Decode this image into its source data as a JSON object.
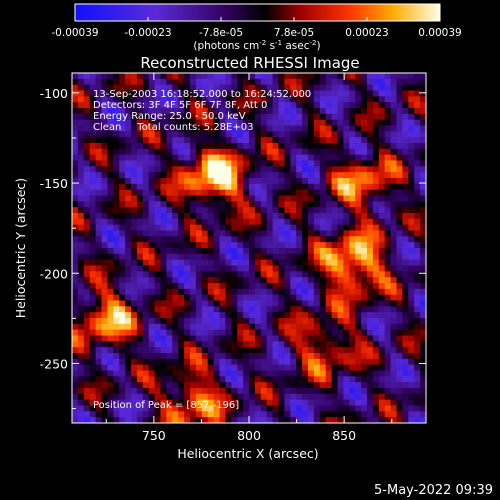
{
  "chart_data": {
    "type": "heatmap",
    "title": "Reconstructed RHESSI Image",
    "xlabel": "Heliocentric X (arcsec)",
    "ylabel": "Heliocentric Y (arcsec)",
    "xlim": [
      707,
      893
    ],
    "ylim": [
      -283,
      -89
    ],
    "x_ticks": [
      750,
      800,
      850
    ],
    "y_ticks": [
      -100,
      -150,
      -200,
      -250
    ],
    "colorbar": {
      "ticks": [
        "-0.00039",
        "-0.00023",
        "-7.8e-05",
        "7.8e-05",
        "0.00023",
        "0.00039"
      ],
      "range": [
        -0.00039,
        0.00039
      ],
      "units_line1": "(photons cm",
      "units_sup1": "-2",
      "units_line2": " s",
      "units_sup2": "-1",
      "units_line3": " asec",
      "units_sup3": "-2",
      "units_line4": ")"
    },
    "annotations": [
      "13-Sep-2003 16:18:52.000 to 16:24:52.000",
      "Detectors: 3F 4F 5F 6F 7F 8F, Att 0",
      "Energy Range: 25.0 - 50.0 keV",
      "Clean     Total counts: 5.28E+03"
    ],
    "peak_label": "Position of Peak = [857,-196]",
    "peaks": [
      {
        "x": 782,
        "y": -147,
        "level": 1.0
      },
      {
        "x": 855,
        "y": -195,
        "level": 1.0
      },
      {
        "x": 725,
        "y": -225,
        "level": 0.75
      },
      {
        "x": 770,
        "y": -270,
        "level": 0.7
      },
      {
        "x": 860,
        "y": -150,
        "level": 0.65
      },
      {
        "x": 840,
        "y": -240,
        "level": 0.6
      }
    ]
  },
  "footer": {
    "timestamp": "5-May-2022 09:39"
  }
}
